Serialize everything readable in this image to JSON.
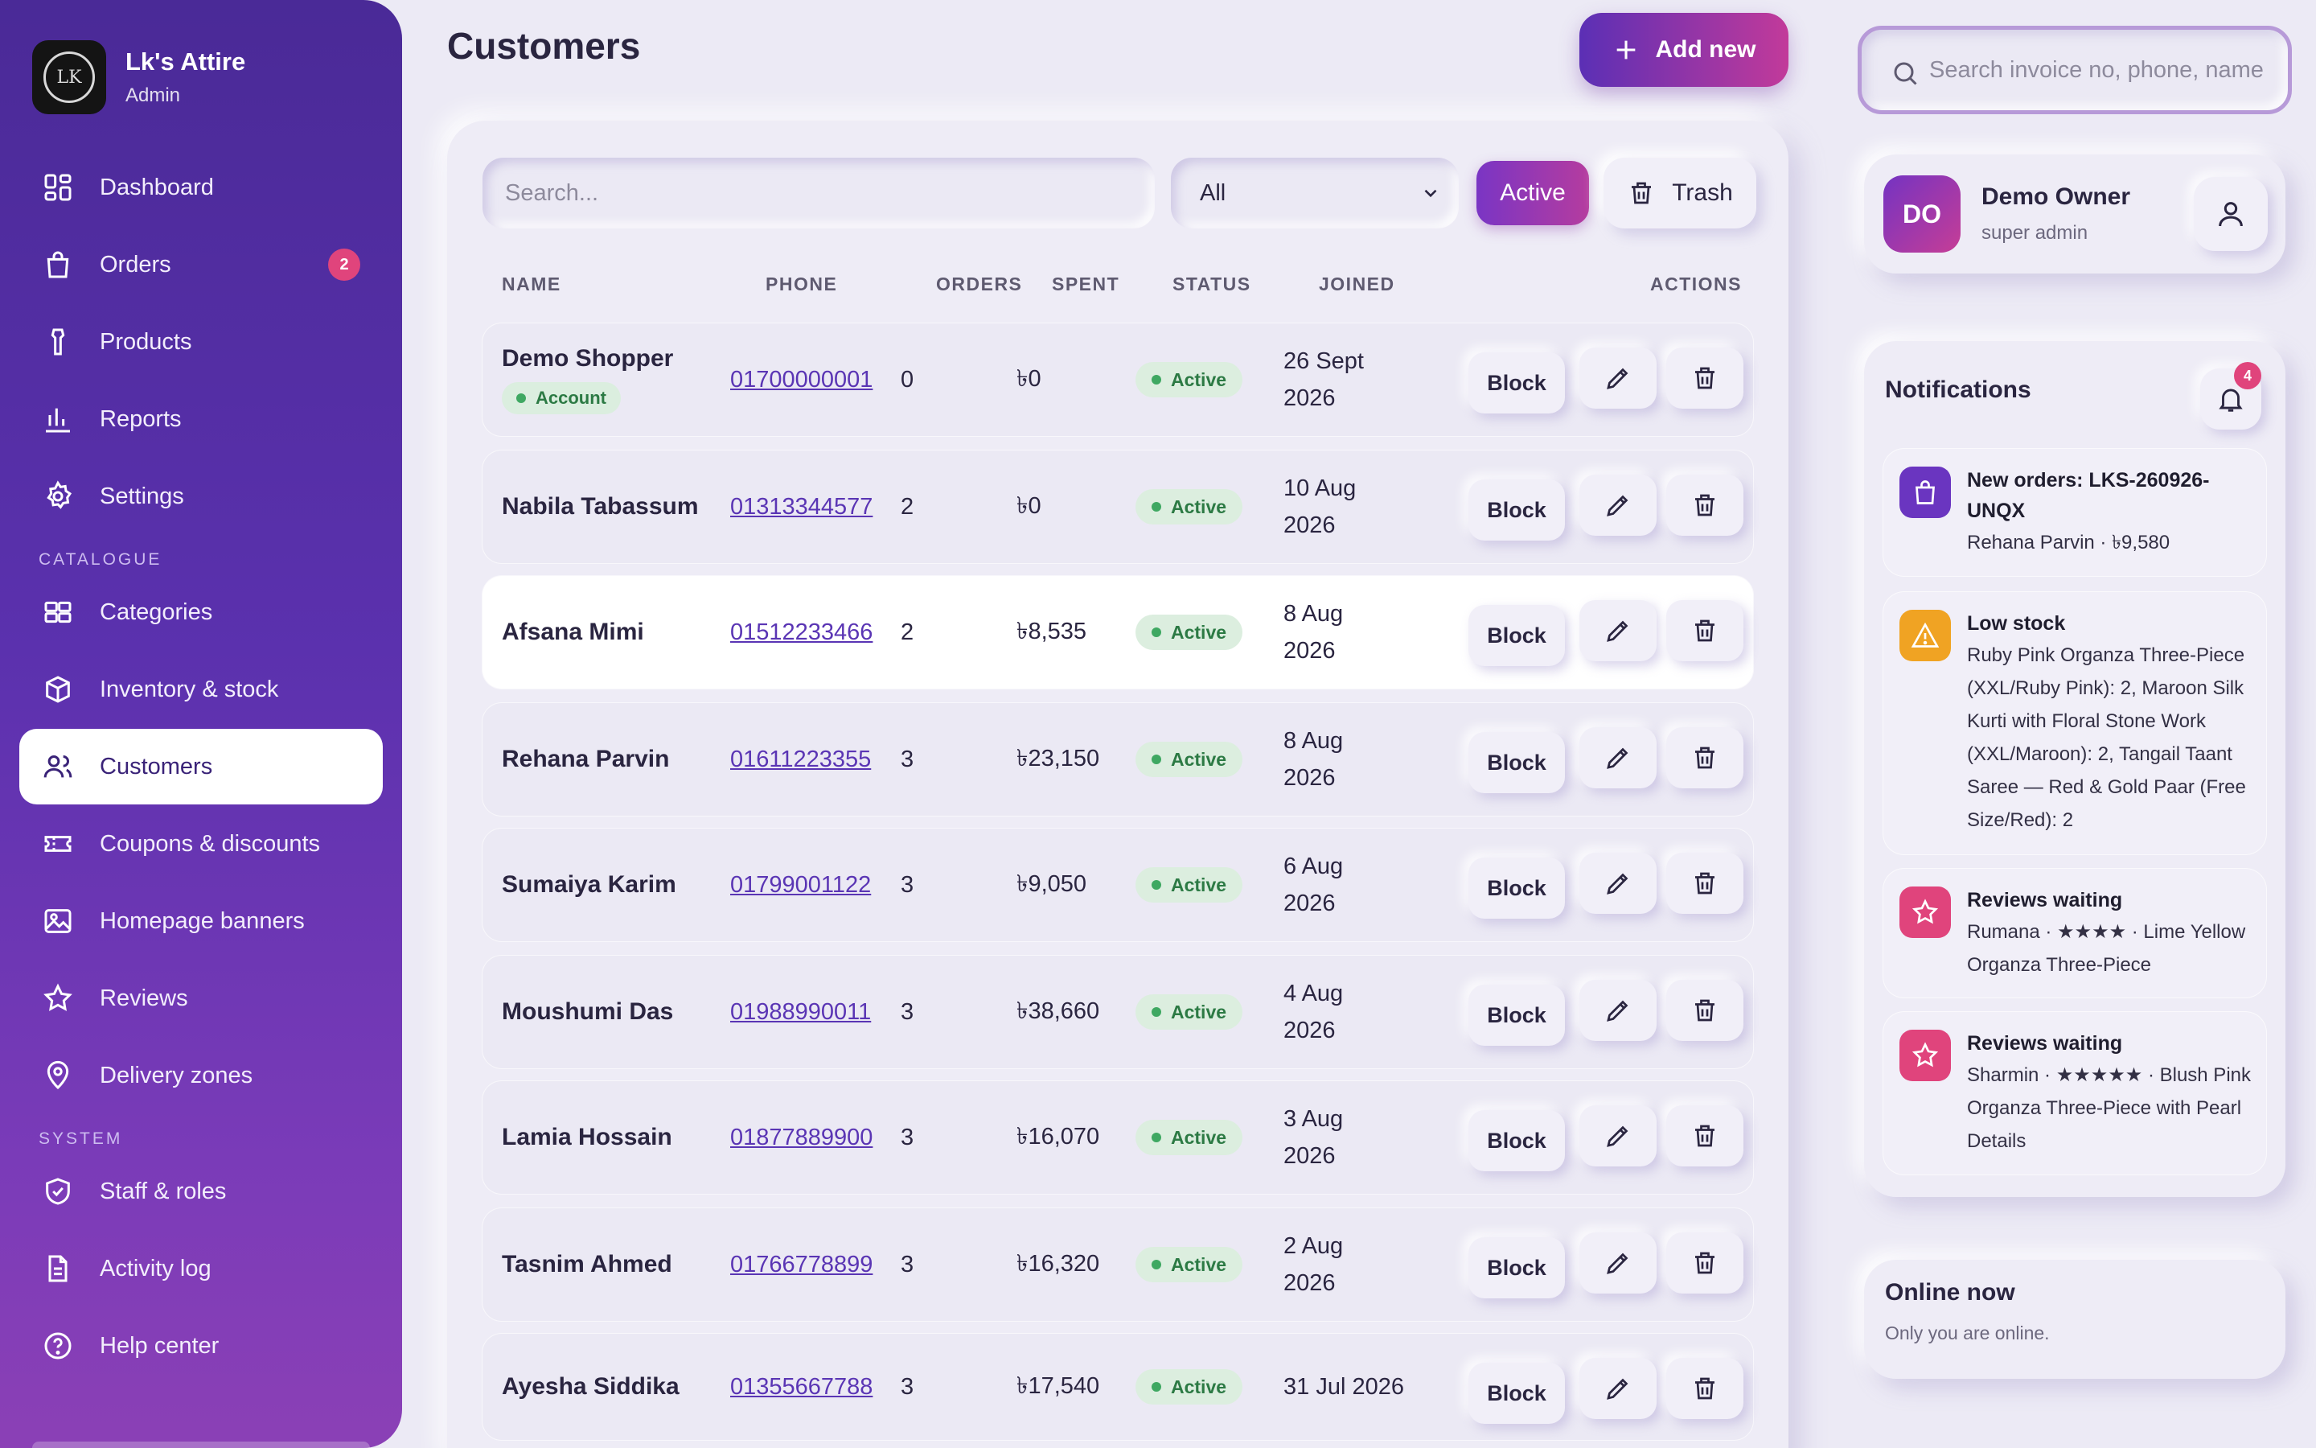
{
  "brand": {
    "name": "Lk's Attire",
    "role": "Admin",
    "logo_text": "LK"
  },
  "nav": {
    "items_main": [
      {
        "label": "Dashboard",
        "icon": "grid-icon"
      },
      {
        "label": "Orders",
        "icon": "bag-icon",
        "badge": "2"
      },
      {
        "label": "Products",
        "icon": "shirt-icon"
      },
      {
        "label": "Reports",
        "icon": "bar-chart-icon"
      },
      {
        "label": "Settings",
        "icon": "gear-icon"
      }
    ],
    "section_catalogue": "CATALOGUE",
    "items_catalogue": [
      {
        "label": "Categories",
        "icon": "category-grid-icon"
      },
      {
        "label": "Inventory & stock",
        "icon": "box-icon"
      },
      {
        "label": "Customers",
        "icon": "users-icon",
        "active": true
      },
      {
        "label": "Coupons & discounts",
        "icon": "ticket-icon"
      },
      {
        "label": "Homepage banners",
        "icon": "image-icon"
      },
      {
        "label": "Reviews",
        "icon": "star-icon"
      },
      {
        "label": "Delivery zones",
        "icon": "map-pin-icon"
      }
    ],
    "section_system": "SYSTEM",
    "items_system": [
      {
        "label": "Staff & roles",
        "icon": "shield-icon"
      },
      {
        "label": "Activity log",
        "icon": "document-icon"
      },
      {
        "label": "Help center",
        "icon": "help-icon"
      }
    ]
  },
  "header": {
    "title": "Customers",
    "add_label": "Add new"
  },
  "toolbar": {
    "search_placeholder": "Search...",
    "filter_value": "All",
    "active_label": "Active",
    "trash_label": "Trash"
  },
  "table": {
    "columns": {
      "name": "NAME",
      "phone": "PHONE",
      "orders": "ORDERS",
      "spent": "SPENT",
      "status": "STATUS",
      "joined": "JOINED",
      "actions": "ACTIONS"
    },
    "block_label": "Block",
    "rows": [
      {
        "name": "Demo Shopper",
        "badge": "Account",
        "phone": "01700000001",
        "orders": "0",
        "spent": "৳0",
        "status": "Active",
        "joined_1": "26 Sept",
        "joined_2": "2026"
      },
      {
        "name": "Nabila Tabassum",
        "phone": "01313344577",
        "orders": "2",
        "spent": "৳0",
        "status": "Active",
        "joined_1": "10 Aug",
        "joined_2": "2026"
      },
      {
        "name": "Afsana Mimi",
        "phone": "01512233466",
        "orders": "2",
        "spent": "৳8,535",
        "status": "Active",
        "joined_1": "8 Aug",
        "joined_2": "2026",
        "highlighted": true
      },
      {
        "name": "Rehana Parvin",
        "phone": "01611223355",
        "orders": "3",
        "spent": "৳23,150",
        "status": "Active",
        "joined_1": "8 Aug",
        "joined_2": "2026"
      },
      {
        "name": "Sumaiya Karim",
        "phone": "01799001122",
        "orders": "3",
        "spent": "৳9,050",
        "status": "Active",
        "joined_1": "6 Aug",
        "joined_2": "2026"
      },
      {
        "name": "Moushumi Das",
        "phone": "01988990011",
        "orders": "3",
        "spent": "৳38,660",
        "status": "Active",
        "joined_1": "4 Aug",
        "joined_2": "2026"
      },
      {
        "name": "Lamia Hossain",
        "phone": "01877889900",
        "orders": "3",
        "spent": "৳16,070",
        "status": "Active",
        "joined_1": "3 Aug",
        "joined_2": "2026"
      },
      {
        "name": "Tasnim Ahmed",
        "phone": "01766778899",
        "orders": "3",
        "spent": "৳16,320",
        "status": "Active",
        "joined_1": "2 Aug",
        "joined_2": "2026"
      },
      {
        "name": "Ayesha Siddika",
        "phone": "01355667788",
        "orders": "3",
        "spent": "৳17,540",
        "status": "Active",
        "joined_1": "31 Jul 2026",
        "joined_2": ""
      }
    ]
  },
  "top_search": {
    "placeholder": "Search invoice no, phone, name"
  },
  "user": {
    "initials": "DO",
    "name": "Demo Owner",
    "role": "super admin"
  },
  "notifications": {
    "title": "Notifications",
    "count": "4",
    "items": [
      {
        "icon": "bag-icon",
        "color": "#6a35c0",
        "head": "New orders: LKS-260926-UNQX",
        "text": "Rehana Parvin · ৳9,580"
      },
      {
        "icon": "warning-icon",
        "color": "#f0a323",
        "head": "Low stock",
        "text": "Ruby Pink Organza Three-Piece (XXL/Ruby Pink): 2, Maroon Silk Kurti with Floral Stone Work (XXL/Maroon): 2, Tangail Taant Saree — Red & Gold Paar (Free Size/Red): 2"
      },
      {
        "icon": "star-icon",
        "color": "#e0447c",
        "head": "Reviews waiting",
        "text": "Rumana · ★★★★ · Lime Yellow Organza Three-Piece"
      },
      {
        "icon": "star-icon",
        "color": "#e0447c",
        "head": "Reviews waiting",
        "text": "Sharmin · ★★★★★ · Blush Pink Organza Three-Piece with Pearl Details"
      }
    ]
  },
  "online": {
    "title": "Online now",
    "text": "Only you are online."
  },
  "colors": {
    "accent": "#5b2fb5",
    "accent2": "#c23a9a",
    "status_green": "#2c7a44",
    "badge_pink": "#e0447c"
  }
}
